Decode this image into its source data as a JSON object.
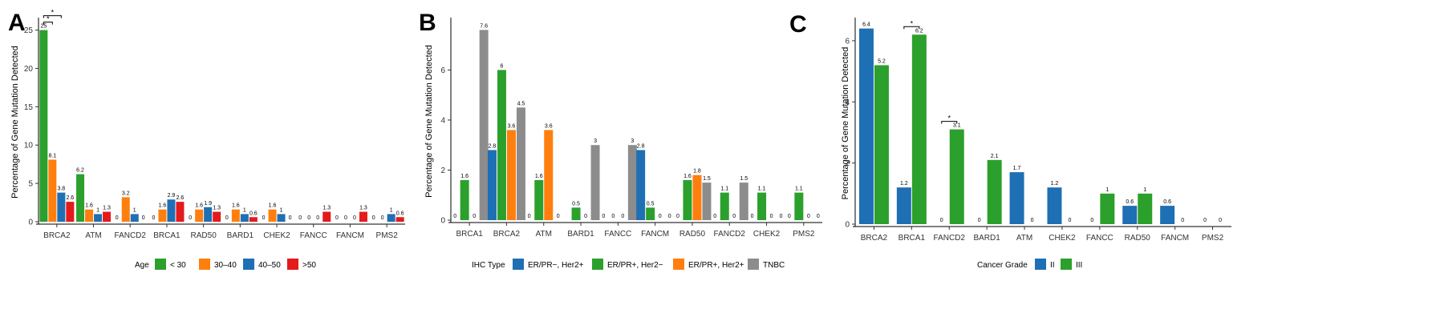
{
  "chart_data": [
    {
      "type": "bar",
      "panel_label": "A",
      "ylabel": "Percentage of Gene Mutation Detected",
      "ylim": [
        0,
        26
      ],
      "yticks": [
        0,
        5,
        10,
        15,
        20,
        25
      ],
      "grid": false,
      "categories": [
        "BRCA2",
        "ATM",
        "FANCD2",
        "BRCA1",
        "RAD50",
        "BARD1",
        "CHEK2",
        "FANCC",
        "FANCM",
        "PMS2"
      ],
      "legend": {
        "title": "Age",
        "position": "bottom"
      },
      "series": [
        {
          "name": "< 30",
          "color": "#2ca02c",
          "values": [
            25,
            6.2,
            0,
            0,
            0,
            0,
            0,
            0,
            0,
            0
          ],
          "labels": [
            "25",
            "6.2",
            "0",
            "0",
            "0",
            "0",
            "0",
            "0",
            "0",
            "0"
          ]
        },
        {
          "name": "30–40",
          "color": "#ff7f0e",
          "values": [
            8.1,
            1.6,
            3.2,
            1.6,
            1.6,
            1.6,
            1.6,
            0,
            0,
            0
          ],
          "labels": [
            "8.1",
            "1.6",
            "3.2",
            "1.6",
            "1.6",
            "1.6",
            "1.6",
            "0",
            "0",
            "0"
          ]
        },
        {
          "name": "40–50",
          "color": "#1f6fb4",
          "values": [
            3.8,
            1,
            1,
            2.9,
            1.9,
            1,
            1,
            0,
            0,
            1
          ],
          "labels": [
            "3.8",
            "1",
            "1",
            "2.9",
            "1.9",
            "1",
            "1",
            "0",
            "0",
            "1"
          ]
        },
        {
          "name": ">50",
          "color": "#e41a1c",
          "values": [
            2.6,
            1.3,
            0,
            2.6,
            1.3,
            0.6,
            0,
            1.3,
            1.3,
            0.6
          ],
          "labels": [
            "2.6",
            "1.3",
            "0",
            "2.6",
            "1.3",
            "0.6",
            "0",
            "1.3",
            "1.3",
            "0.6"
          ]
        }
      ],
      "significance": [
        {
          "category": "BRCA2",
          "from_series": 0,
          "to_series": 2,
          "text": "*"
        },
        {
          "category": "BRCA2",
          "from_series": 0,
          "to_series": 1,
          "text": "*"
        }
      ]
    },
    {
      "type": "bar",
      "panel_label": "B",
      "ylabel": "Percentage of Gene Mutation Detected",
      "ylim": [
        0,
        7.9
      ],
      "yticks": [
        0,
        2,
        4,
        6
      ],
      "grid": false,
      "categories": [
        "BRCA1",
        "BRCA2",
        "ATM",
        "BARD1",
        "FANCC",
        "FANCM",
        "RAD50",
        "FANCD2",
        "CHEK2",
        "PMS2"
      ],
      "legend": {
        "title": "IHC Type",
        "position": "bottom"
      },
      "series": [
        {
          "name": "ER/PR−, Her2+",
          "color": "#1f6fb4",
          "values": [
            0,
            2.8,
            0,
            0,
            0,
            2.8,
            0,
            0,
            0,
            0
          ],
          "labels": [
            "0",
            "2.8",
            "0",
            "",
            "0",
            "2.8",
            "0",
            "0",
            "0",
            "0"
          ]
        },
        {
          "name": "ER/PR+, Her2−",
          "color": "#2ca02c",
          "values": [
            1.6,
            6,
            1.6,
            0.5,
            0,
            0.5,
            1.6,
            1.1,
            1.1,
            1.1
          ],
          "labels": [
            "1.6",
            "6",
            "1.6",
            "0.5",
            "0",
            "0.5",
            "1.6",
            "1.1",
            "1.1",
            "1.1"
          ]
        },
        {
          "name": "ER/PR+, Her2+",
          "color": "#ff7f0e",
          "values": [
            0,
            3.6,
            3.6,
            0,
            0,
            0,
            1.8,
            0,
            0,
            0
          ],
          "labels": [
            "0",
            "3.6",
            "3.6",
            "0",
            "0",
            "0",
            "1.8",
            "0",
            "0",
            "0"
          ]
        },
        {
          "name": "TNBC",
          "color": "#8c8c8c",
          "values": [
            7.6,
            4.5,
            0,
            3,
            3,
            0,
            1.5,
            1.5,
            0,
            0
          ],
          "labels": [
            "7.6",
            "4.5",
            "0",
            "3",
            "3",
            "0",
            "1.5",
            "1.5",
            "0",
            "0"
          ]
        }
      ],
      "significance": []
    },
    {
      "type": "bar",
      "panel_label": "C",
      "ylabel": "Percentage of Gene Mutation Detected",
      "ylim": [
        0,
        6.6
      ],
      "yticks": [
        0,
        2,
        4,
        6
      ],
      "grid": false,
      "categories": [
        "BRCA2",
        "BRCA1",
        "FANCD2",
        "BARD1",
        "ATM",
        "CHEK2",
        "FANCC",
        "RAD50",
        "FANCM",
        "PMS2"
      ],
      "legend": {
        "title": "Cancer Grade",
        "position": "bottom"
      },
      "series": [
        {
          "name": "II",
          "color": "#1f6fb4",
          "values": [
            6.4,
            1.2,
            0,
            0,
            1.7,
            1.2,
            0,
            0.6,
            0.6,
            0
          ],
          "labels": [
            "6.4",
            "1.2",
            "0",
            "0",
            "1.7",
            "1.2",
            "0",
            "0.6",
            "0.6",
            "0"
          ]
        },
        {
          "name": "III",
          "color": "#2ca02c",
          "values": [
            5.2,
            6.2,
            3.1,
            2.1,
            0,
            0,
            1,
            1,
            0,
            0
          ],
          "labels": [
            "5.2",
            "6.2",
            "3.1",
            "2.1",
            "0",
            "0",
            "1",
            "1",
            "0",
            "0"
          ]
        }
      ],
      "significance": [
        {
          "category": "BRCA1",
          "from_series": 0,
          "to_series": 1,
          "text": "*"
        },
        {
          "category": "FANCD2",
          "from_series": 0,
          "to_series": 1,
          "text": "*"
        }
      ]
    }
  ]
}
